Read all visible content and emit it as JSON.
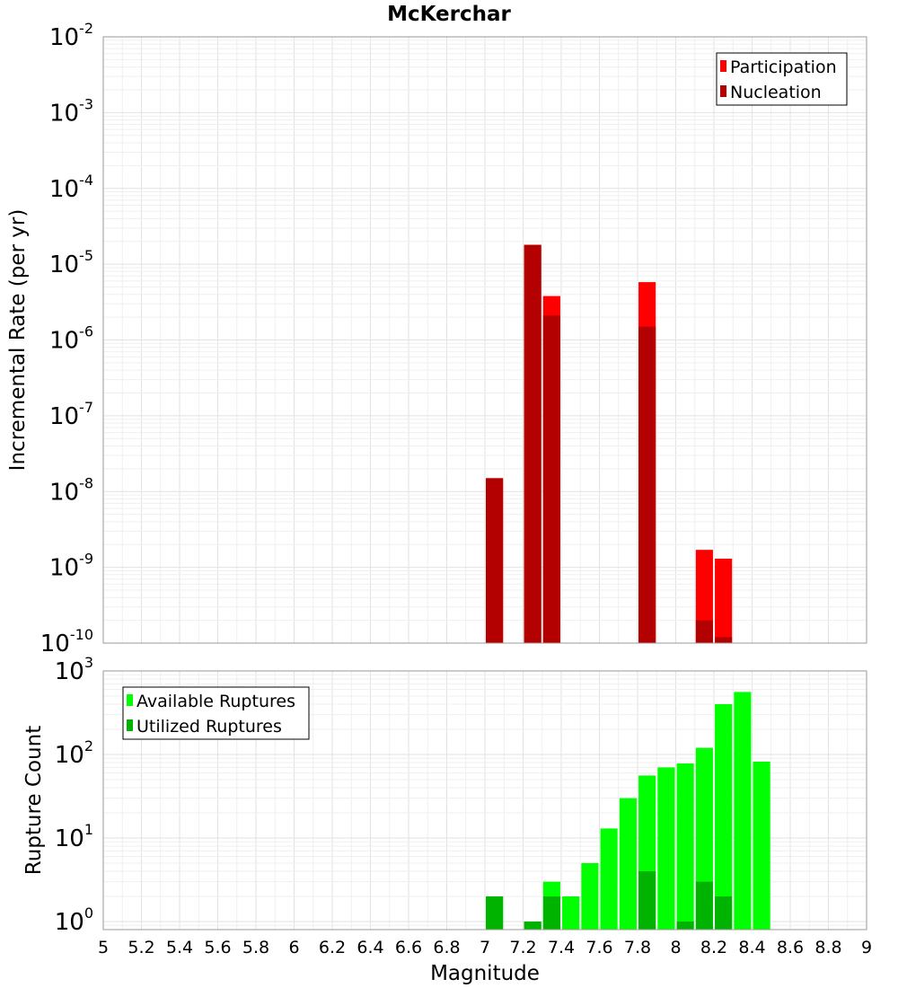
{
  "chart_data": [
    {
      "type": "bar",
      "title": "McKerchar",
      "ylabel": "Incremental Rate (per yr)",
      "xlabel": "",
      "yscale": "log",
      "ylim": [
        1e-10,
        0.01
      ],
      "xlim": [
        5,
        9
      ],
      "y_tick_exponents": [
        "-10",
        "-9",
        "-8",
        "-7",
        "-6",
        "-5",
        "-4",
        "-3",
        "-2"
      ],
      "y_tick_base": "10",
      "grid": true,
      "legend_position": "top-right",
      "series": [
        {
          "name": "Participation",
          "color": "#ff0000",
          "points": [
            {
              "x": 7.05,
              "y": 1.5e-08
            },
            {
              "x": 7.25,
              "y": 1.8e-05
            },
            {
              "x": 7.35,
              "y": 3.8e-06
            },
            {
              "x": 7.85,
              "y": 5.8e-06
            },
            {
              "x": 8.15,
              "y": 1.7e-09
            },
            {
              "x": 8.25,
              "y": 1.3e-09
            }
          ]
        },
        {
          "name": "Nucleation",
          "color": "#b30000",
          "points": [
            {
              "x": 7.05,
              "y": 1.5e-08
            },
            {
              "x": 7.25,
              "y": 1.8e-05
            },
            {
              "x": 7.35,
              "y": 2.1e-06
            },
            {
              "x": 7.85,
              "y": 1.5e-06
            },
            {
              "x": 8.15,
              "y": 2e-10
            },
            {
              "x": 8.25,
              "y": 1.2e-10
            }
          ]
        }
      ]
    },
    {
      "type": "bar",
      "title": "",
      "ylabel": "Rupture Count",
      "xlabel": "Magnitude",
      "yscale": "log",
      "ylim": [
        0.8,
        1000
      ],
      "xlim": [
        5,
        9
      ],
      "x_tick_labels": [
        "5",
        "5.2",
        "5.4",
        "5.6",
        "5.8",
        "6",
        "6.2",
        "6.4",
        "6.6",
        "6.8",
        "7",
        "7.2",
        "7.4",
        "7.6",
        "7.8",
        "8",
        "8.2",
        "8.4",
        "8.6",
        "8.8",
        "9"
      ],
      "y_tick_exponents": [
        "0",
        "1",
        "2",
        "3"
      ],
      "y_tick_base": "10",
      "grid": true,
      "legend_position": "top-left",
      "series": [
        {
          "name": "Available Ruptures",
          "color": "#00ff00",
          "points": [
            {
              "x": 7.05,
              "y": 2
            },
            {
              "x": 7.25,
              "y": 1
            },
            {
              "x": 7.35,
              "y": 3
            },
            {
              "x": 7.45,
              "y": 2
            },
            {
              "x": 7.55,
              "y": 5
            },
            {
              "x": 7.65,
              "y": 13
            },
            {
              "x": 7.75,
              "y": 30
            },
            {
              "x": 7.85,
              "y": 56
            },
            {
              "x": 7.95,
              "y": 70
            },
            {
              "x": 8.05,
              "y": 78
            },
            {
              "x": 8.15,
              "y": 120
            },
            {
              "x": 8.25,
              "y": 400
            },
            {
              "x": 8.35,
              "y": 560
            },
            {
              "x": 8.45,
              "y": 82
            }
          ]
        },
        {
          "name": "Utilized Ruptures",
          "color": "#00b300",
          "points": [
            {
              "x": 7.05,
              "y": 2
            },
            {
              "x": 7.25,
              "y": 1
            },
            {
              "x": 7.35,
              "y": 2
            },
            {
              "x": 7.85,
              "y": 4
            },
            {
              "x": 8.05,
              "y": 1
            },
            {
              "x": 8.15,
              "y": 3
            },
            {
              "x": 8.25,
              "y": 2
            }
          ]
        }
      ]
    }
  ]
}
